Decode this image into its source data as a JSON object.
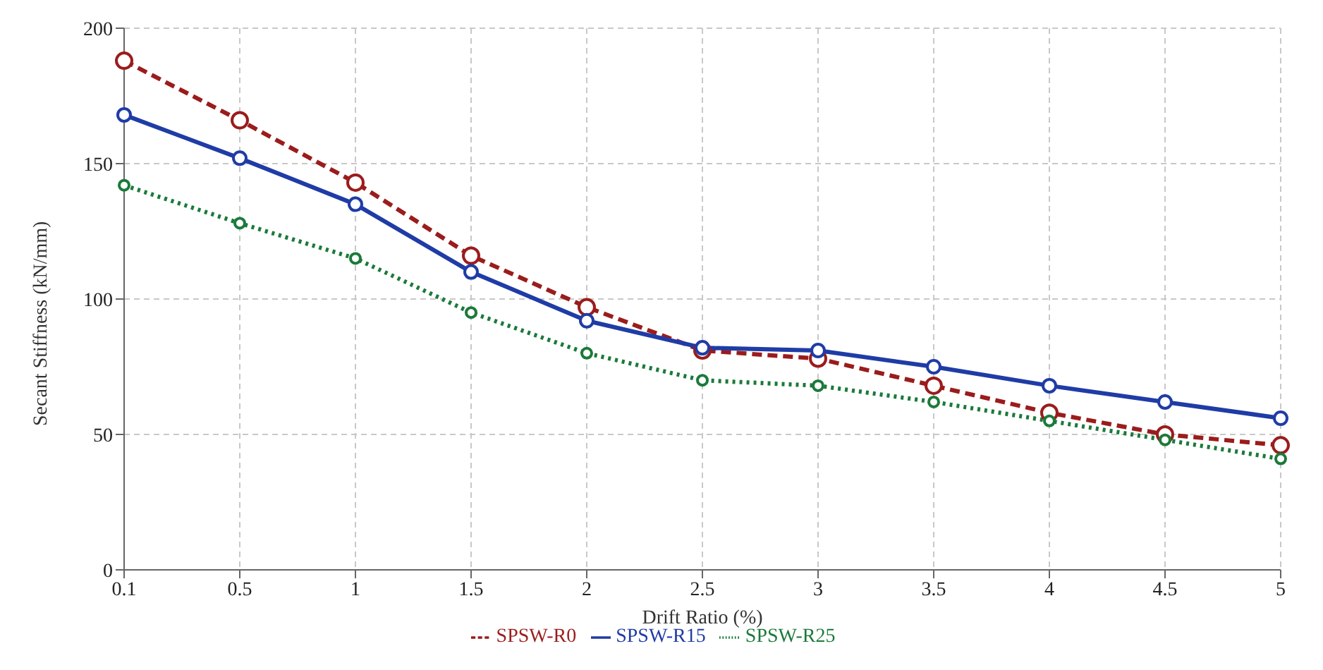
{
  "chart_data": {
    "type": "line",
    "xlabel": "Drift Ratio (%)",
    "ylabel": "Secant Stiffness (kN/mm)",
    "categories": [
      "0.1",
      "0.5",
      "1",
      "1.5",
      "2",
      "2.5",
      "3",
      "3.5",
      "4",
      "4.5",
      "5"
    ],
    "series": [
      {
        "name": "SPSW-R0",
        "color": "#9b1c1c",
        "line_style": "dashed",
        "values": [
          188,
          166,
          143,
          116,
          97,
          81,
          78,
          68,
          58,
          50,
          46
        ]
      },
      {
        "name": "SPSW-R15",
        "color": "#1f3ca6",
        "line_style": "solid",
        "values": [
          168,
          152,
          135,
          110,
          92,
          82,
          81,
          75,
          68,
          62,
          56
        ]
      },
      {
        "name": "SPSW-R25",
        "color": "#1b7a3a",
        "line_style": "dotted",
        "values": [
          142,
          128,
          115,
          95,
          80,
          70,
          68,
          62,
          55,
          48,
          41
        ]
      }
    ],
    "ylim": [
      0,
      200
    ],
    "yticks": [
      0,
      50,
      100,
      150,
      200
    ],
    "grid": true,
    "legend": "bottom",
    "marker": "circle"
  }
}
